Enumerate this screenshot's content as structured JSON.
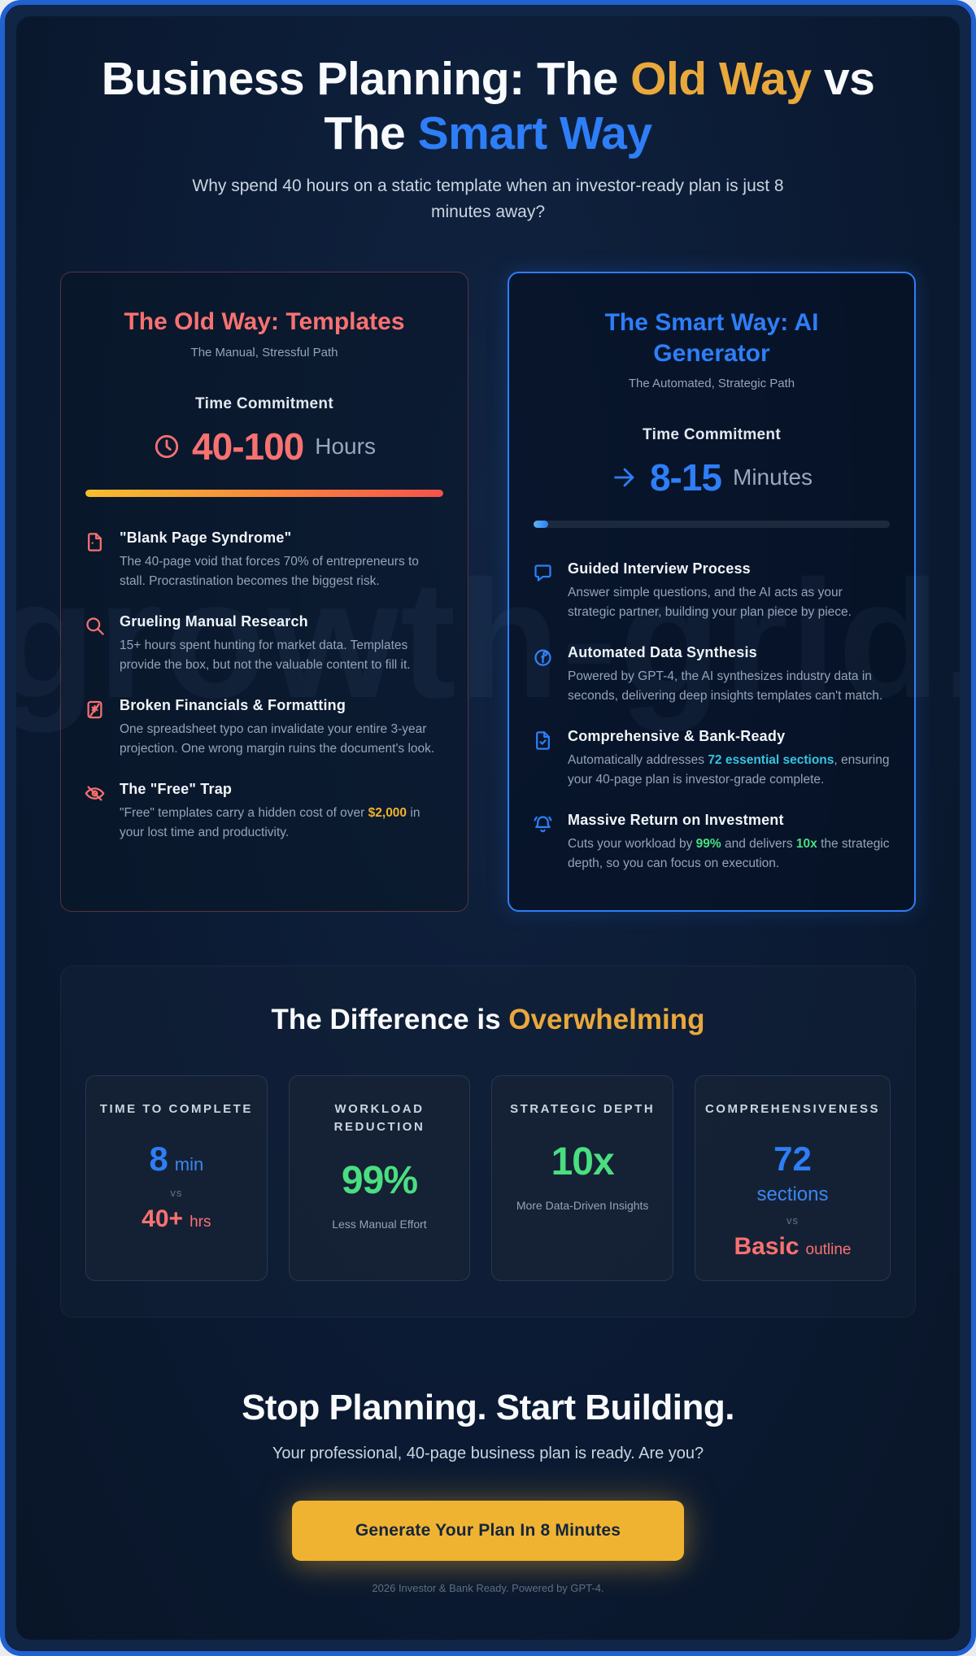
{
  "watermark": "growth-grid.ai",
  "header": {
    "title_1": "Business Planning: The ",
    "title_old": "Old Way",
    "title_2": " vs The ",
    "title_smart": "Smart Way",
    "subtitle": "Why spend 40 hours on a static template when an investor-ready plan is just 8 minutes away?"
  },
  "old_card": {
    "title": "The Old Way: Templates",
    "subtitle": "The Manual, Stressful Path",
    "time_label": "Time Commitment",
    "time_value": "40-100",
    "time_unit": "Hours",
    "progress_percent": 100,
    "features": [
      {
        "icon": "blank-page-icon",
        "title": "\"Blank Page Syndrome\"",
        "desc": [
          {
            "text": "The 40-page void that forces 70% of entrepreneurs to stall. Procrastination becomes the biggest risk."
          }
        ]
      },
      {
        "icon": "search-icon",
        "title": "Grueling Manual Research",
        "desc": [
          {
            "text": "15+ hours spent hunting for market data. Templates provide the box, but not the valuable content to fill it."
          }
        ]
      },
      {
        "icon": "broken-calculator-icon",
        "title": "Broken Financials & Formatting",
        "desc": [
          {
            "text": "One spreadsheet typo can invalidate your entire 3-year projection. One wrong margin ruins the document's look."
          }
        ]
      },
      {
        "icon": "eye-off-icon",
        "title": "The \"Free\" Trap",
        "desc": [
          {
            "text": "\"Free\" templates carry a hidden cost of over "
          },
          {
            "text": "$2,000",
            "hl": "gold"
          },
          {
            "text": " in your lost time and productivity."
          }
        ]
      }
    ]
  },
  "smart_card": {
    "title": "The Smart Way: AI Generator",
    "subtitle": "The Automated, Strategic Path",
    "time_label": "Time Commitment",
    "time_value": "8-15",
    "time_unit": "Minutes",
    "progress_percent": 4,
    "features": [
      {
        "icon": "chat-bubble-icon",
        "title": "Guided Interview Process",
        "desc": [
          {
            "text": "Answer simple questions, and the AI acts as your strategic partner, building your plan piece by piece."
          }
        ]
      },
      {
        "icon": "data-synthesis-icon",
        "title": "Automated Data Synthesis",
        "desc": [
          {
            "text": "Powered by GPT-4, the AI synthesizes industry data in seconds, delivering deep insights templates can't match."
          }
        ]
      },
      {
        "icon": "file-check-icon",
        "title": "Comprehensive & Bank-Ready",
        "desc": [
          {
            "text": "Automatically addresses "
          },
          {
            "text": "72 essential sections",
            "hl": "cyan"
          },
          {
            "text": ", ensuring your 40-page plan is investor-grade complete."
          }
        ]
      },
      {
        "icon": "bell-icon",
        "title": "Massive Return on Investment",
        "desc": [
          {
            "text": "Cuts your workload by "
          },
          {
            "text": "99%",
            "hl": "green"
          },
          {
            "text": " and delivers "
          },
          {
            "text": "10x",
            "hl": "green"
          },
          {
            "text": " the strategic depth, so you can focus on execution."
          }
        ]
      }
    ]
  },
  "difference": {
    "title_1": "The Difference is ",
    "title_hl": "Overwhelming",
    "cards": [
      {
        "label": "TIME TO COMPLETE",
        "win_value": "8",
        "win_unit": "min",
        "vs": "vs",
        "lose_value": "40+",
        "lose_unit": "hrs"
      },
      {
        "label": "WORKLOAD REDUCTION",
        "value": "99%",
        "caption": "Less Manual Effort"
      },
      {
        "label": "STRATEGIC DEPTH",
        "value": "10x",
        "caption": "More Data-Driven Insights"
      },
      {
        "label": "COMPREHENSIVENESS",
        "win_value": "72",
        "win_unit": "sections",
        "vs": "vs",
        "lose_value": "Basic",
        "lose_unit": "outline"
      }
    ]
  },
  "cta": {
    "title": "Stop Planning. Start Building.",
    "subtitle": "Your professional, 40-page business plan is ready. Are you?",
    "button_label": "Generate Your Plan In 8 Minutes",
    "footer": "2026 Investor & Bank Ready. Powered by GPT-4."
  },
  "colors": {
    "frame_border": "#2161d1",
    "old_accent": "#f87171",
    "smart_accent": "#2e7ef7",
    "gold": "#e9a83c",
    "green": "#4ade80",
    "cyan": "#38c3e0",
    "button_bg": "#f0b331"
  }
}
